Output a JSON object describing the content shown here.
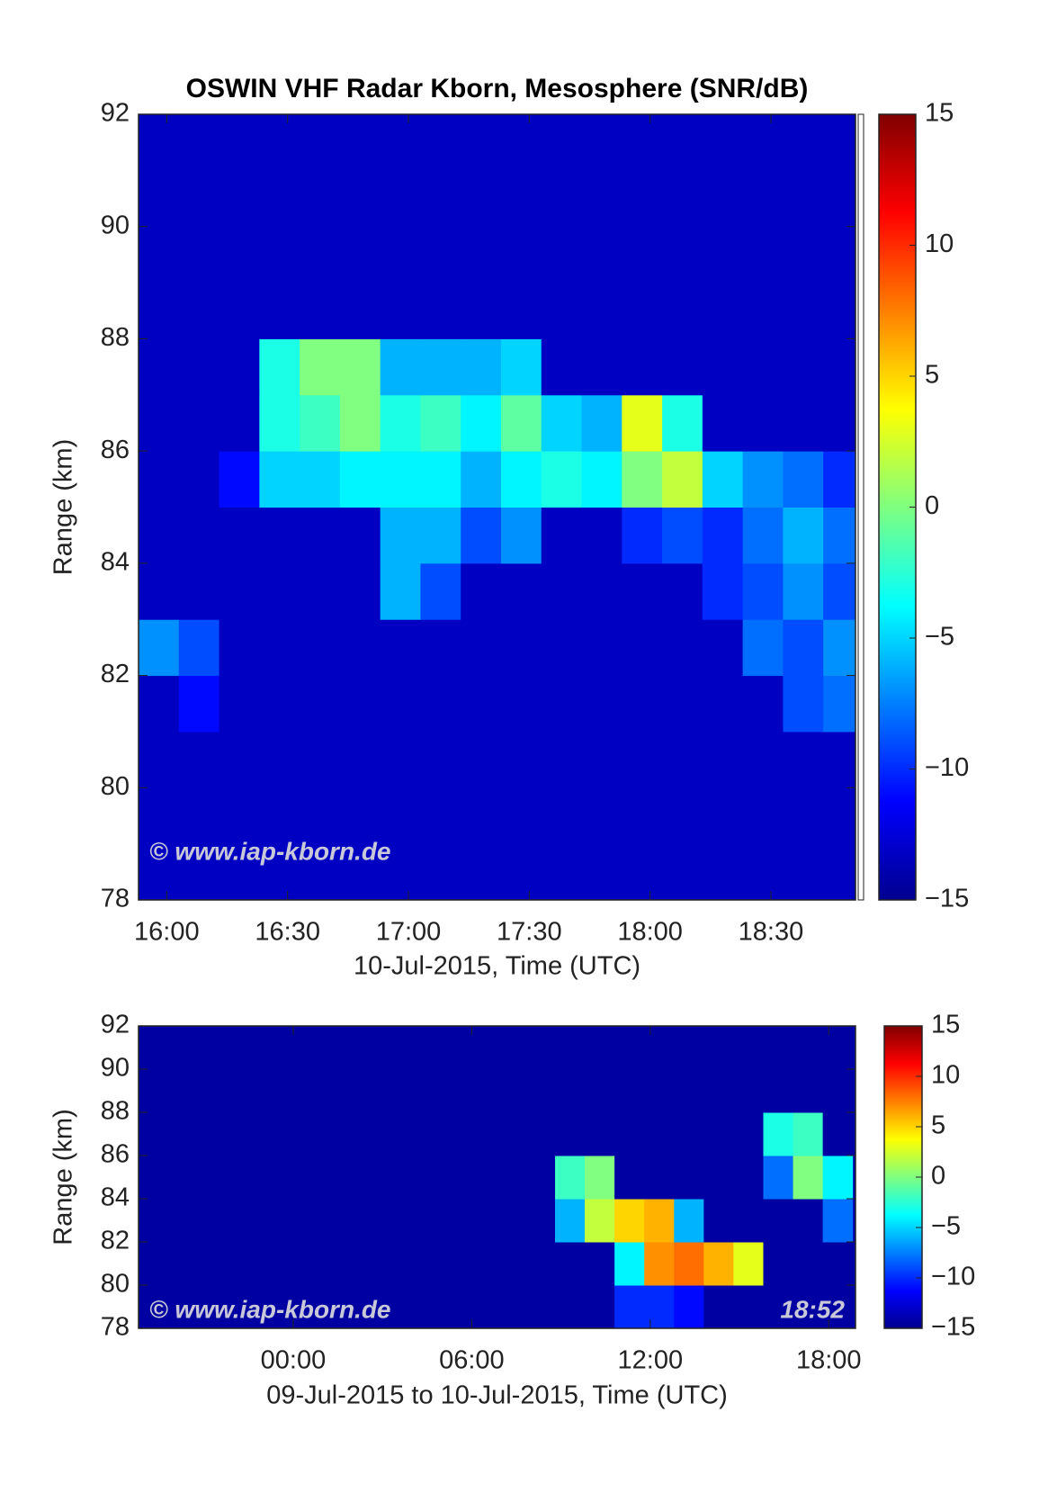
{
  "chart_data": [
    {
      "type": "heatmap",
      "title": "OSWIN VHF Radar Kborn, Mesosphere (SNR/dB)",
      "xlabel": "10-Jul-2015, Time (UTC)",
      "ylabel": "Range (km)",
      "colormap": "jet",
      "annotations": [
        "© www.iap-kborn.de"
      ],
      "x": [
        958,
        968,
        978,
        988,
        998,
        1008,
        1018,
        1028,
        1038,
        1048,
        1058,
        1068,
        1078,
        1088,
        1098,
        1108,
        1118,
        1128
      ],
      "y": [
        78.5,
        79.5,
        80.5,
        81.5,
        82.5,
        83.5,
        84.5,
        85.5,
        86.5,
        87.5,
        88.5,
        89.5,
        90.5,
        91.5
      ],
      "z": [
        [
          -13,
          -13,
          -13,
          -13,
          -13,
          -13,
          -13,
          -13,
          -13,
          -13,
          -13,
          -13,
          -13,
          -13,
          -13,
          -13,
          -13,
          -13
        ],
        [
          -13,
          -13,
          -13,
          -13,
          -13,
          -13,
          -13,
          -13,
          -13,
          -13,
          -13,
          -13,
          -13,
          -13,
          -13,
          -13,
          -13,
          -13
        ],
        [
          -13,
          -13,
          -13,
          -13,
          -13,
          -13,
          -13,
          -13,
          -13,
          -13,
          -13,
          -13,
          -13,
          -13,
          -13,
          -13,
          -13,
          -13
        ],
        [
          -13,
          -11,
          -13,
          -13,
          -13,
          -13,
          -13,
          -13,
          -13,
          -13,
          -13,
          -13,
          -13,
          -13,
          -13,
          -13,
          -9,
          -8
        ],
        [
          -7,
          -9,
          -13,
          -13,
          -13,
          -13,
          -13,
          -13,
          -13,
          -13,
          -13,
          -13,
          -13,
          -13,
          -13,
          -8,
          -9,
          -7
        ],
        [
          -13,
          -13,
          -13,
          -13,
          -13,
          -13,
          -6,
          -9,
          -13,
          -13,
          -13,
          -13,
          -13,
          -13,
          -10,
          -9,
          -7,
          -9
        ],
        [
          -13,
          -13,
          -13,
          -13,
          -13,
          -13,
          -6,
          -6,
          -9,
          -7,
          -13,
          -13,
          -10,
          -9,
          -10,
          -8,
          -6,
          -8
        ],
        [
          -13,
          -13,
          -11,
          -5,
          -5,
          -4,
          -4,
          -4,
          -6,
          -4,
          -3,
          -4,
          0,
          2,
          -5,
          -7,
          -8,
          -10
        ],
        [
          -13,
          -13,
          -13,
          -3,
          -2,
          0,
          -3,
          -2,
          -4,
          -1,
          -5,
          -6,
          3,
          -3,
          -13,
          -13,
          -13,
          -13
        ],
        [
          -13,
          -13,
          -13,
          -3,
          0,
          0,
          -6,
          -6,
          -6,
          -5,
          -13,
          -13,
          -13,
          -13,
          -13,
          -13,
          -13,
          -13
        ],
        [
          -13,
          -13,
          -13,
          -13,
          -13,
          -13,
          -13,
          -13,
          -13,
          -13,
          -13,
          -13,
          -13,
          -13,
          -13,
          -13,
          -13,
          -13
        ],
        [
          -13,
          -13,
          -13,
          -13,
          -13,
          -13,
          -13,
          -13,
          -13,
          -13,
          -13,
          -13,
          -13,
          -13,
          -13,
          -13,
          -13,
          -13
        ],
        [
          -13,
          -13,
          -13,
          -13,
          -13,
          -13,
          -13,
          -13,
          -13,
          -13,
          -13,
          -13,
          -13,
          -13,
          -13,
          -13,
          -13,
          -13
        ],
        [
          -13,
          -13,
          -13,
          -13,
          -13,
          -13,
          -13,
          -13,
          -13,
          -13,
          -13,
          -13,
          -13,
          -13,
          -13,
          -13,
          -13,
          -13
        ]
      ],
      "xlim": [
        953,
        1131
      ],
      "ylim": [
        78,
        92
      ],
      "xticks": [
        {
          "value": 960,
          "label": "16:00"
        },
        {
          "value": 990,
          "label": "16:30"
        },
        {
          "value": 1020,
          "label": "17:00"
        },
        {
          "value": 1050,
          "label": "17:30"
        },
        {
          "value": 1080,
          "label": "18:00"
        },
        {
          "value": 1110,
          "label": "18:30"
        }
      ],
      "yticks": [
        78,
        80,
        82,
        84,
        86,
        88,
        90,
        92
      ],
      "clim": [
        -15,
        15
      ],
      "cticks": [
        {
          "value": -15,
          "label": "−15"
        },
        {
          "value": -10,
          "label": "−10"
        },
        {
          "value": -5,
          "label": "−5"
        },
        0,
        5,
        10,
        15
      ]
    },
    {
      "type": "heatmap",
      "xlabel": "09-Jul-2015 to 10-Jul-2015, Time (UTC)",
      "ylabel": "Range (km)",
      "colormap": "jet",
      "annotations": [
        "© www.iap-kborn.de",
        "18:52"
      ],
      "x": [
        -4.7,
        -3.7,
        -2.7,
        -1.7,
        -0.7,
        0.3,
        1.3,
        2.3,
        3.3,
        4.3,
        5.3,
        6.3,
        7.3,
        8.3,
        9.3,
        10.3,
        11.3,
        12.3,
        13.3,
        14.3,
        15.3,
        16.3,
        17.3,
        18.3
      ],
      "y": [
        79,
        81,
        83,
        85,
        87,
        89,
        91
      ],
      "z": [
        [
          -14,
          -14,
          -14,
          -14,
          -14,
          -14,
          -14,
          -14,
          -14,
          -14,
          -14,
          -14,
          -14,
          -14,
          -14,
          -14,
          -10,
          -10,
          -11,
          -14,
          -14,
          -14,
          -14,
          -14
        ],
        [
          -14,
          -14,
          -14,
          -14,
          -14,
          -14,
          -14,
          -14,
          -14,
          -14,
          -14,
          -14,
          -14,
          -14,
          -14,
          -14,
          -4,
          7,
          8,
          6,
          3,
          -14,
          -14,
          -14
        ],
        [
          -14,
          -14,
          -14,
          -14,
          -14,
          -14,
          -14,
          -14,
          -14,
          -14,
          -14,
          -14,
          -14,
          -14,
          -6,
          2,
          5,
          6,
          -6,
          -14,
          -14,
          -14,
          -14,
          -8
        ],
        [
          -14,
          -14,
          -14,
          -14,
          -14,
          -14,
          -14,
          -14,
          -14,
          -14,
          -14,
          -14,
          -14,
          -14,
          -2,
          0,
          -14,
          -14,
          -14,
          -14,
          -14,
          -8,
          0,
          -4
        ],
        [
          -14,
          -14,
          -14,
          -14,
          -14,
          -14,
          -14,
          -14,
          -14,
          -14,
          -14,
          -14,
          -14,
          -14,
          -14,
          -14,
          -14,
          -14,
          -14,
          -14,
          -14,
          -3,
          -2,
          -14
        ],
        [
          -14,
          -14,
          -14,
          -14,
          -14,
          -14,
          -14,
          -14,
          -14,
          -14,
          -14,
          -14,
          -14,
          -14,
          -14,
          -14,
          -14,
          -14,
          -14,
          -14,
          -14,
          -14,
          -14,
          -14
        ],
        [
          -14,
          -14,
          -14,
          -14,
          -14,
          -14,
          -14,
          -14,
          -14,
          -14,
          -14,
          -14,
          -14,
          -14,
          -14,
          -14,
          -14,
          -14,
          -14,
          -14,
          -14,
          -14,
          -14,
          -14
        ]
      ],
      "xlim": [
        -5.2,
        18.9
      ],
      "ylim": [
        78,
        92
      ],
      "xticks": [
        {
          "value": 0,
          "label": "00:00"
        },
        {
          "value": 6,
          "label": "06:00"
        },
        {
          "value": 12,
          "label": "12:00"
        },
        {
          "value": 18,
          "label": "18:00"
        }
      ],
      "yticks": [
        78,
        80,
        82,
        84,
        86,
        88,
        90,
        92
      ],
      "clim": [
        -15,
        15
      ],
      "cticks": [
        {
          "value": -15,
          "label": "−15"
        },
        {
          "value": -10,
          "label": "−10"
        },
        {
          "value": -5,
          "label": "−5"
        },
        0,
        5,
        10,
        15
      ]
    }
  ]
}
